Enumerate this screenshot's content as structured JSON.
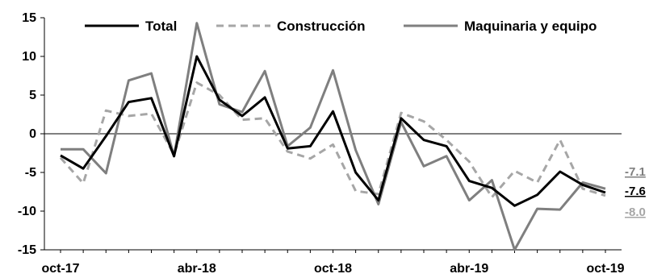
{
  "chart_data": {
    "type": "line",
    "title": "",
    "xlabel": "",
    "ylabel": "",
    "ylim": [
      -15,
      15
    ],
    "yticks": [
      "15",
      "10",
      "5",
      "0",
      "-5",
      "-10",
      "-15"
    ],
    "x": [
      "oct-17",
      "nov-17",
      "dic-17",
      "ene-18",
      "feb-18",
      "mar-18",
      "abr-18",
      "may-18",
      "jun-18",
      "jul-18",
      "ago-18",
      "sep-18",
      "oct-18",
      "nov-18",
      "dic-18",
      "ene-19",
      "feb-19",
      "mar-19",
      "abr-19",
      "may-19",
      "jun-19",
      "jul-19",
      "ago-19",
      "sep-19",
      "oct-19"
    ],
    "xtick_labels": [
      "oct-17",
      "abr-18",
      "oct-18",
      "abr-19",
      "oct-19"
    ],
    "grid": false,
    "legend_position": "top",
    "series": [
      {
        "name": "Total",
        "color": "#000000",
        "style": "solid",
        "values": [
          -2.8,
          -4.5,
          -0.3,
          4.1,
          4.6,
          -2.9,
          10.0,
          4.4,
          2.3,
          4.7,
          -1.9,
          -1.6,
          2.9,
          -5.0,
          -8.6,
          2.0,
          -0.8,
          -1.6,
          -6.1,
          -7.0,
          -9.3,
          -7.9,
          -4.9,
          -6.6,
          -7.6
        ]
      },
      {
        "name": "Construcción",
        "color": "#a6a6a6",
        "style": "dashed",
        "values": [
          -3.1,
          -6.4,
          3.0,
          2.3,
          2.6,
          -2.7,
          6.6,
          5.0,
          1.8,
          2.0,
          -2.3,
          -3.2,
          -1.4,
          -7.4,
          -7.8,
          2.7,
          1.6,
          -0.8,
          -3.6,
          -8.2,
          -4.8,
          -6.3,
          -0.8,
          -7.1,
          -8.0
        ]
      },
      {
        "name": "Maquinaria y equipo",
        "color": "#7f7f7f",
        "style": "solid",
        "values": [
          -2.0,
          -2.0,
          -5.1,
          6.9,
          7.8,
          -2.9,
          14.3,
          3.8,
          2.8,
          8.1,
          -1.6,
          0.8,
          8.2,
          -2.1,
          -9.1,
          1.5,
          -4.2,
          -2.9,
          -8.6,
          -6.0,
          -15.0,
          -9.7,
          -9.8,
          -6.3,
          -7.1
        ]
      }
    ],
    "end_labels": [
      {
        "text": "-7.1",
        "color": "#7f7f7f"
      },
      {
        "text": "-7.6",
        "color": "#000000"
      },
      {
        "text": "-8.0",
        "color": "#a6a6a6"
      }
    ]
  }
}
